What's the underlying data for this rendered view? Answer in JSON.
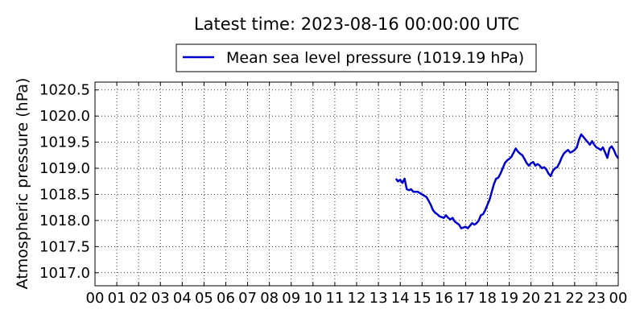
{
  "chart_data": {
    "type": "line",
    "title": "Latest time: 2023-08-16 00:00:00 UTC",
    "xlabel": "",
    "ylabel": "Atmospheric pressure (hPa)",
    "ylim": [
      1016.75,
      1020.65
    ],
    "xlim": [
      0,
      24
    ],
    "grid": true,
    "legend_position": "top-center",
    "x_ticks": [
      "00",
      "01",
      "02",
      "03",
      "04",
      "05",
      "06",
      "07",
      "08",
      "09",
      "10",
      "11",
      "12",
      "13",
      "14",
      "15",
      "16",
      "17",
      "18",
      "19",
      "20",
      "21",
      "22",
      "23",
      "00"
    ],
    "y_ticks": [
      "1017.0",
      "1017.5",
      "1018.0",
      "1018.5",
      "1019.0",
      "1019.5",
      "1020.0",
      "1020.5"
    ],
    "series": [
      {
        "name": "Mean sea level pressure (1019.19 hPa)",
        "color": "#0000cc",
        "x": [
          13.8,
          13.9,
          14.0,
          14.1,
          14.2,
          14.3,
          14.4,
          14.5,
          14.6,
          14.8,
          15.0,
          15.2,
          15.3,
          15.4,
          15.5,
          15.6,
          15.7,
          15.8,
          16.0,
          16.1,
          16.2,
          16.3,
          16.4,
          16.5,
          16.6,
          16.7,
          16.8,
          17.0,
          17.1,
          17.2,
          17.3,
          17.4,
          17.5,
          17.6,
          17.7,
          17.8,
          17.9,
          18.0,
          18.1,
          18.2,
          18.3,
          18.4,
          18.5,
          18.6,
          18.7,
          18.8,
          18.9,
          19.0,
          19.1,
          19.2,
          19.3,
          19.4,
          19.5,
          19.6,
          19.7,
          19.8,
          19.9,
          20.0,
          20.1,
          20.2,
          20.3,
          20.4,
          20.5,
          20.6,
          20.7,
          20.8,
          20.9,
          21.0,
          21.1,
          21.2,
          21.3,
          21.4,
          21.5,
          21.6,
          21.7,
          21.8,
          21.9,
          22.0,
          22.1,
          22.2,
          22.3,
          22.4,
          22.5,
          22.6,
          22.7,
          22.8,
          22.9,
          23.0,
          23.1,
          23.2,
          23.3,
          23.4,
          23.5,
          23.6,
          23.7,
          23.8,
          23.9,
          24.0
        ],
        "y": [
          1018.8,
          1018.75,
          1018.78,
          1018.72,
          1018.8,
          1018.6,
          1018.58,
          1018.6,
          1018.55,
          1018.55,
          1018.5,
          1018.45,
          1018.38,
          1018.3,
          1018.2,
          1018.15,
          1018.12,
          1018.08,
          1018.05,
          1018.1,
          1018.05,
          1018.02,
          1018.05,
          1017.98,
          1017.95,
          1017.92,
          1017.85,
          1017.88,
          1017.85,
          1017.9,
          1017.95,
          1017.92,
          1017.95,
          1018.0,
          1018.1,
          1018.12,
          1018.2,
          1018.3,
          1018.4,
          1018.55,
          1018.7,
          1018.8,
          1018.82,
          1018.9,
          1019.0,
          1019.1,
          1019.15,
          1019.18,
          1019.22,
          1019.3,
          1019.38,
          1019.32,
          1019.28,
          1019.25,
          1019.18,
          1019.1,
          1019.05,
          1019.1,
          1019.12,
          1019.05,
          1019.08,
          1019.05,
          1019.0,
          1019.02,
          1018.98,
          1018.9,
          1018.85,
          1018.95,
          1019.0,
          1019.02,
          1019.1,
          1019.2,
          1019.28,
          1019.32,
          1019.35,
          1019.3,
          1019.32,
          1019.35,
          1019.4,
          1019.55,
          1019.65,
          1019.6,
          1019.55,
          1019.5,
          1019.45,
          1019.52,
          1019.45,
          1019.4,
          1019.38,
          1019.35,
          1019.4,
          1019.3,
          1019.2,
          1019.38,
          1019.42,
          1019.35,
          1019.25,
          1019.19
        ]
      }
    ]
  }
}
